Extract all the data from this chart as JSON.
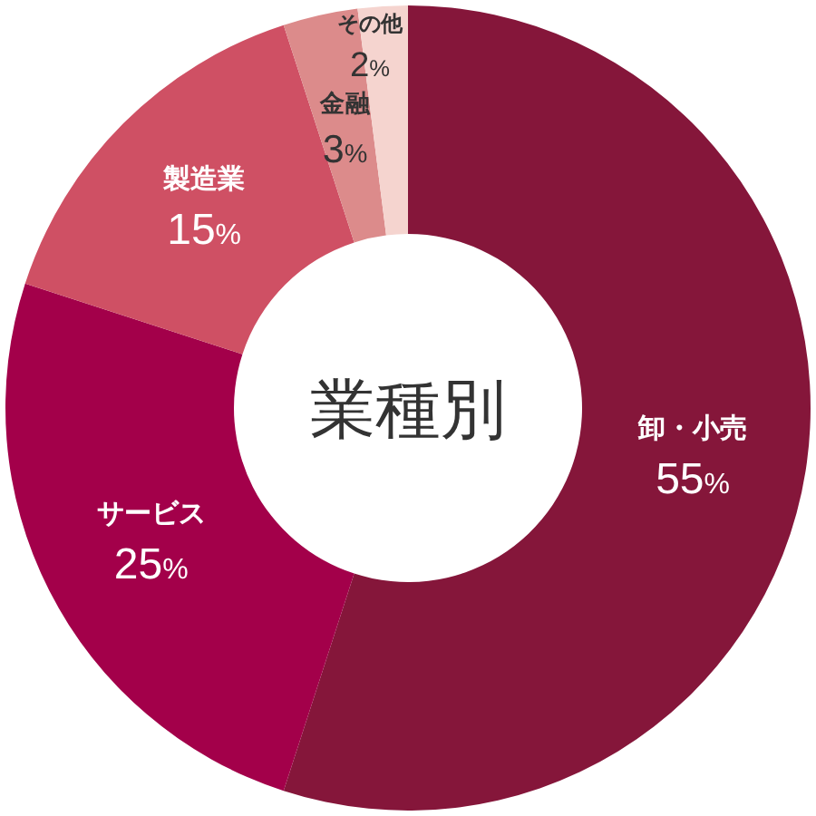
{
  "chart_data": {
    "type": "donut",
    "title": "業種別",
    "categories": [
      "卸・小売",
      "サービス",
      "製造業",
      "金融",
      "その他"
    ],
    "values": [
      55,
      25,
      15,
      3,
      2
    ],
    "colors": [
      "#85163a",
      "#a3004a",
      "#cf5064",
      "#dc8b8b",
      "#f5d4cf"
    ],
    "value_labels": [
      "55%",
      "25%",
      "15%",
      "3%",
      "2%"
    ]
  }
}
